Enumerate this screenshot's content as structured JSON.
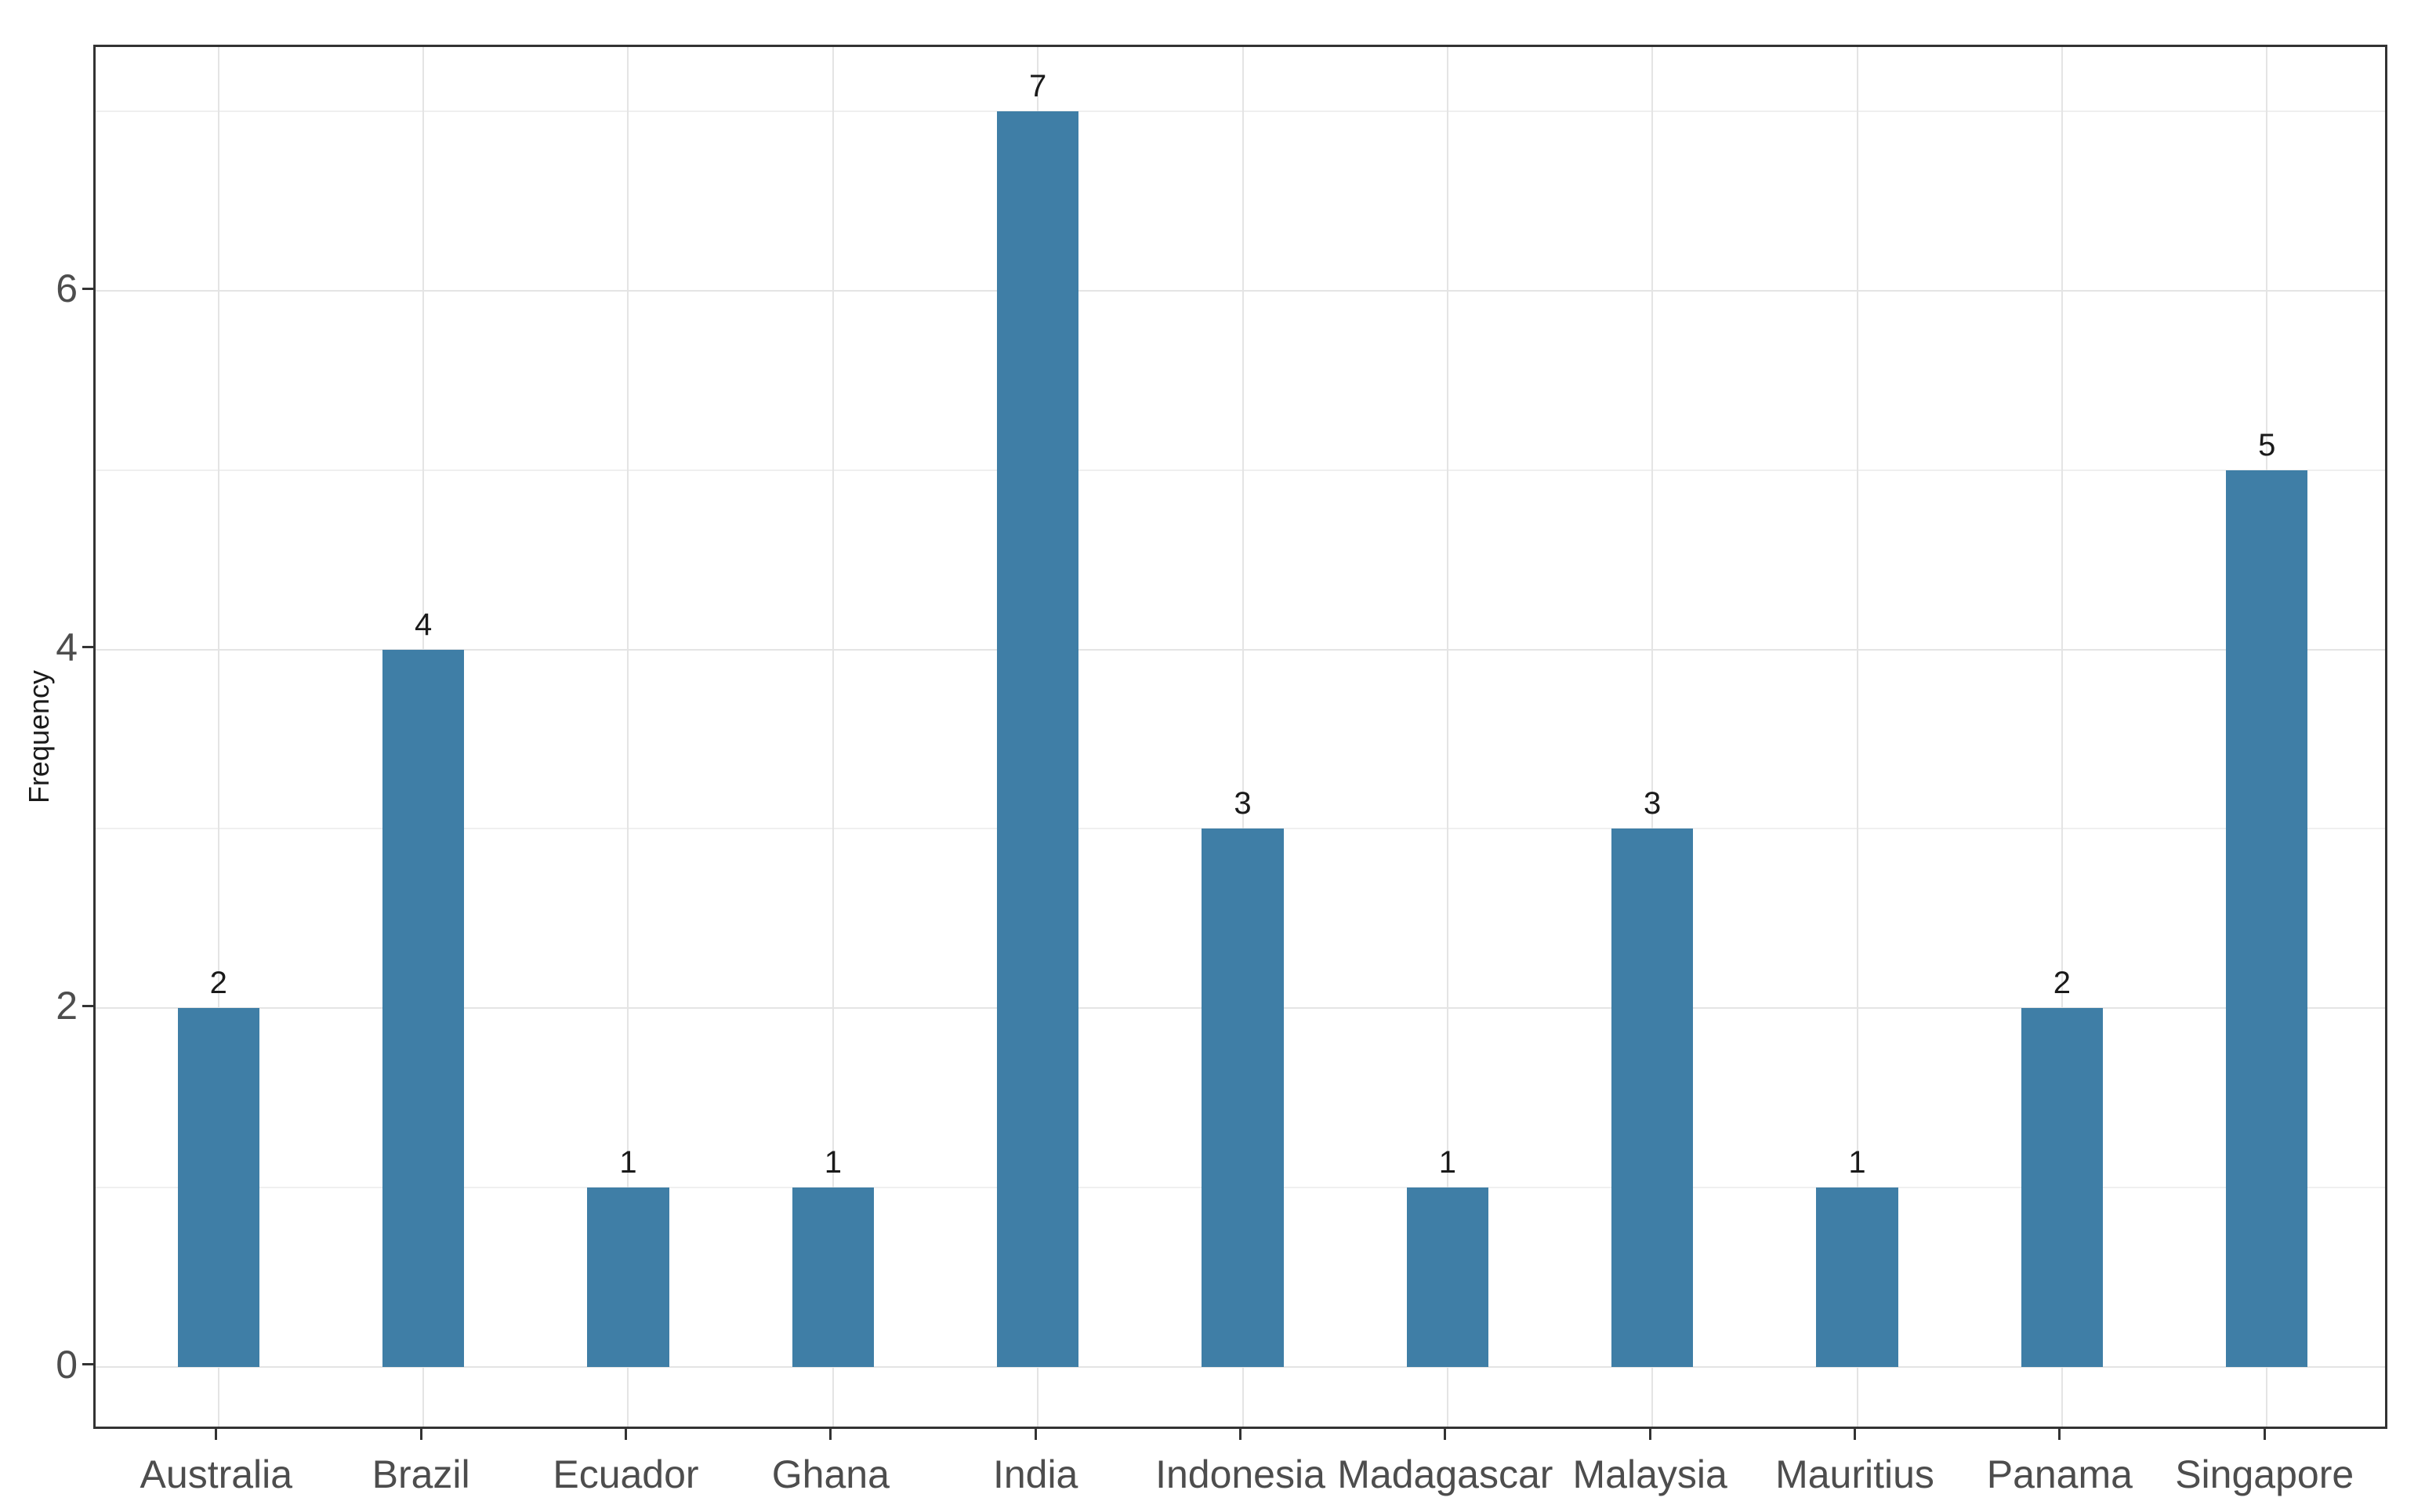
{
  "chart_data": {
    "type": "bar",
    "title": "",
    "xlabel": "",
    "ylabel": "Frequency",
    "categories": [
      "Australia",
      "Brazil",
      "Ecuador",
      "Ghana",
      "India",
      "Indonesia",
      "Madagascar",
      "Malaysia",
      "Mauritius",
      "Panama",
      "Singapore"
    ],
    "values": [
      2,
      4,
      1,
      1,
      7,
      3,
      1,
      3,
      1,
      2,
      5
    ],
    "bar_value_labels": [
      "2",
      "4",
      "1",
      "1",
      "7",
      "3",
      "1",
      "3",
      "1",
      "2",
      "5"
    ],
    "ylim": [
      -0.36,
      7.36
    ],
    "yticks": [
      {
        "value": 0,
        "label": "0"
      },
      {
        "value": 2,
        "label": "2"
      },
      {
        "value": 4,
        "label": "4"
      },
      {
        "value": 6,
        "label": "6"
      }
    ],
    "yminor_values": [
      1,
      3,
      5,
      7
    ],
    "x_padding_categories": 0.6,
    "bar_width_ratio": 0.4,
    "legend": "none",
    "grid": {
      "horizontal_major": true,
      "horizontal_minor": true,
      "vertical_major_at_categories": true,
      "vertical_minor": false
    },
    "colors": {
      "bar_fill": "#3F7EA6",
      "panel_border": "#333333",
      "grid_major": "#E4E4E4",
      "grid_minor": "#EFEFEF",
      "axis_text": "#4D4D4D",
      "axis_title_text": "#1A1A1A",
      "tick_mark": "#333333",
      "value_label": "#1A1A1A",
      "background": "#FFFFFF"
    }
  }
}
